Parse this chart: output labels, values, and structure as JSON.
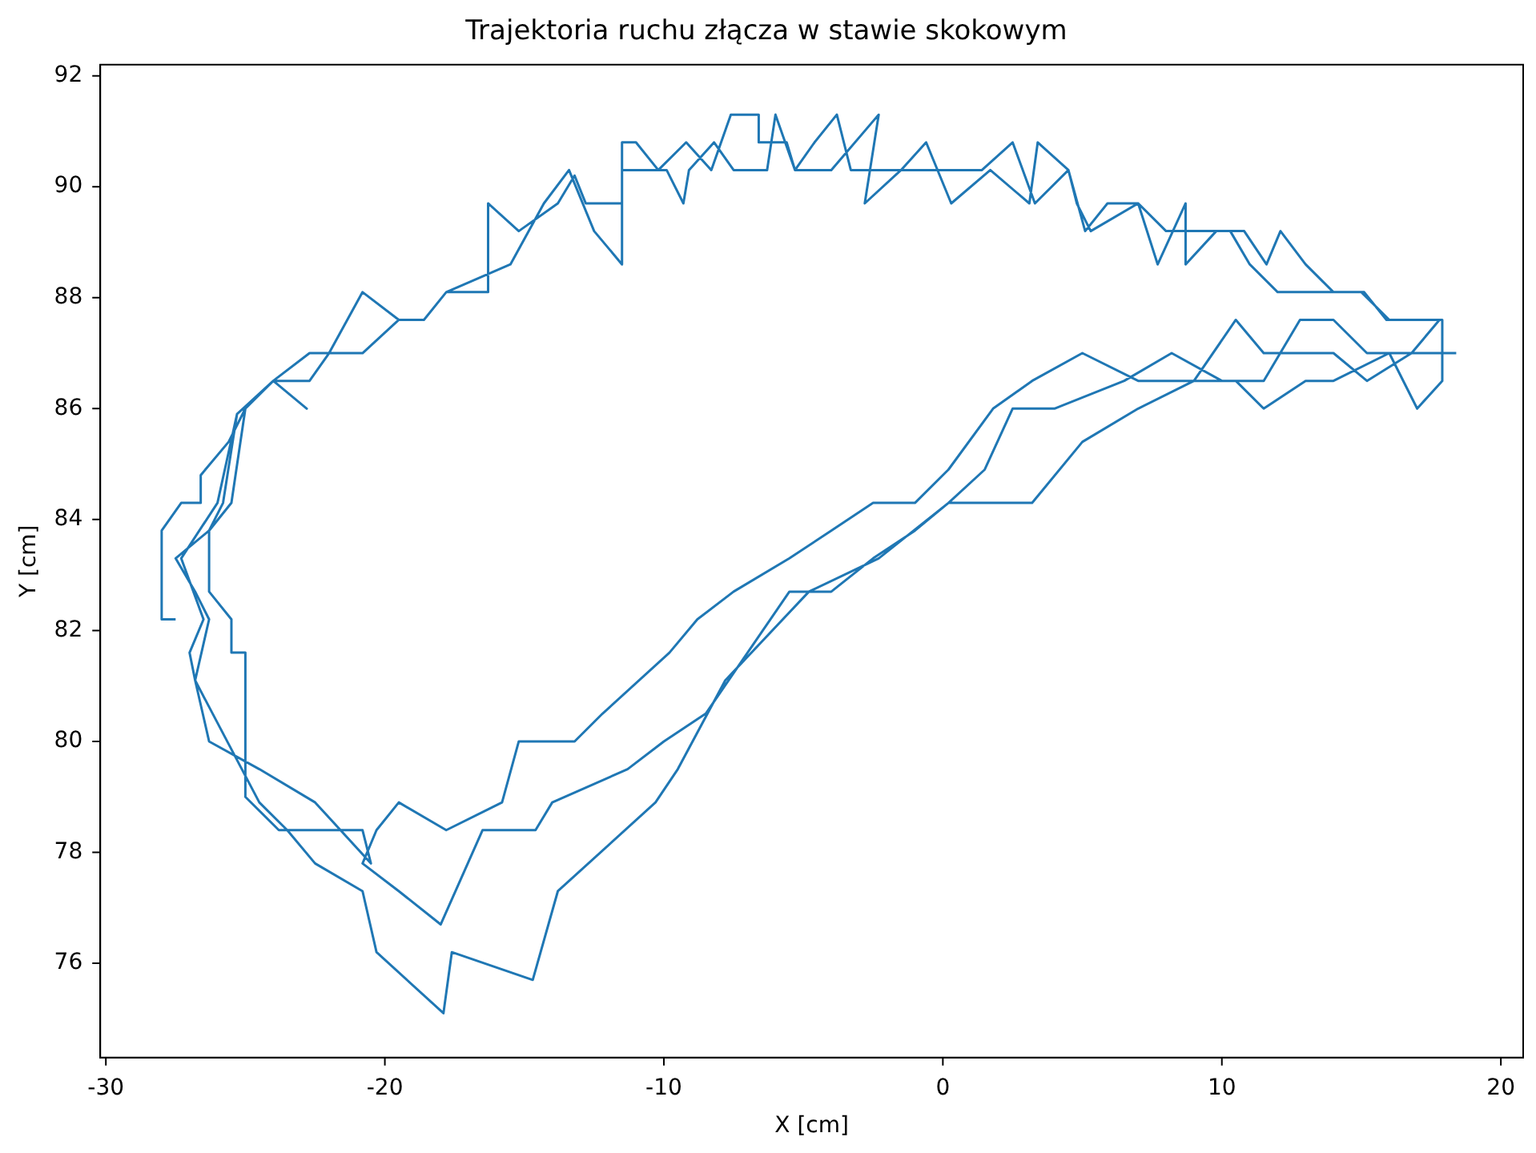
{
  "chart_data": {
    "type": "line",
    "title": "Trajektoria ruchu złącza w stawie skokowym",
    "xlabel": "X [cm]",
    "ylabel": "Y [cm]",
    "xlim": [
      -30.2,
      20.8
    ],
    "ylim": [
      74.3,
      92.2
    ],
    "xticks": [
      -30,
      -20,
      -10,
      0,
      10,
      20
    ],
    "yticks": [
      76,
      78,
      80,
      82,
      84,
      86,
      88,
      90,
      92
    ],
    "grid": false,
    "legend": false,
    "series": [
      {
        "color": "#1f77b4",
        "x": [
          -27.5,
          -28,
          -28,
          -27.3,
          -26.6,
          -26.6,
          -25.6,
          -25,
          -24,
          -22.8,
          -24,
          -25,
          -25.5,
          -26.3,
          -27.5,
          -26.8,
          -26.3,
          -26.8,
          -26.3,
          -24.5,
          -22.5,
          -20.5,
          -20.8,
          -22.5,
          -23.8,
          -25,
          -25,
          -25.5,
          -25.5,
          -26.3,
          -26.3,
          -25.8,
          -25.3,
          -24,
          -22.7,
          -22,
          -20.8,
          -19.5,
          -18.6,
          -17.8,
          -16.3,
          -16.3,
          -15.2,
          -13.8,
          -13.2,
          -12.8,
          -11.5,
          -11.5,
          -11,
          -10.2,
          -9.2,
          -8.3,
          -7.6,
          -6.6,
          -6.6,
          -5.6,
          -5.3,
          -4.6,
          -3.8,
          -3.3,
          -2.3,
          -1.2,
          0.4,
          1.4,
          2.5,
          3.3,
          4.5,
          5.1,
          5.9,
          7,
          8,
          9.3,
          10.3,
          11,
          12,
          13.3,
          15.1,
          15.9,
          17.9,
          17.9,
          17,
          16,
          14,
          13,
          11.5,
          10.5,
          9,
          7,
          5,
          3.2,
          1.8,
          0.2,
          -1,
          -2.5,
          -4,
          -5.5,
          -7,
          -8.5,
          -10,
          -11.3,
          -14,
          -14.6,
          -16.5,
          -18,
          -19.5,
          -20.8,
          -20.3,
          -19.5,
          -17.8,
          -15.8,
          -15.2,
          -13.2,
          -12.2,
          -9.8,
          -8.8,
          -7.5,
          -5.5,
          -4,
          -2.5,
          -1,
          0.2,
          1.8,
          3.2,
          5,
          7,
          9,
          10.5,
          11.5,
          12.8,
          14,
          15.2,
          16.8,
          17.8,
          16,
          15,
          14,
          13,
          12.1,
          11.6,
          10.8,
          9.8,
          8.7,
          8.7,
          7.7,
          7,
          5.3,
          4.8,
          4.5,
          3.4,
          3.1,
          1.7,
          0.3,
          -0.6,
          -1.5,
          -2.8,
          -2.3,
          -4,
          -5.3,
          -6,
          -6.3,
          -7.5,
          -8.2,
          -9.1,
          -9.3,
          -9.9,
          -11.5,
          -11.5,
          -12.5,
          -13.4,
          -14.3,
          -15.5,
          -17.8,
          -18.6,
          -19.5,
          -20.8,
          -22,
          -22.7,
          -24,
          -25.3,
          -26,
          -27.3,
          -26.5,
          -27,
          -26.8,
          -24.5,
          -23.5,
          -22.5,
          -20.8,
          -20.3,
          -17.9,
          -17.6,
          -14.7,
          -13.8,
          -10.3,
          -9.5,
          -7.8,
          -4.8,
          -2.3,
          0.2,
          1.5,
          2.5,
          4,
          6.5,
          8.2,
          10,
          11.5,
          12.8,
          14,
          15.2,
          16.8,
          18.4
        ],
        "values": [
          82.2,
          82.2,
          83.8,
          84.3,
          84.3,
          84.8,
          85.4,
          86,
          86.5,
          86,
          86.5,
          86,
          84.3,
          83.8,
          83.3,
          82.7,
          82.2,
          81.1,
          80,
          79.5,
          78.9,
          77.8,
          78.4,
          78.4,
          78.4,
          79,
          81.6,
          81.6,
          82.2,
          82.7,
          83.8,
          84.3,
          85.9,
          86.5,
          86.5,
          87,
          87,
          87.6,
          87.6,
          88.1,
          88.1,
          89.7,
          89.2,
          89.7,
          90.2,
          89.7,
          89.7,
          90.8,
          90.8,
          90.3,
          90.8,
          90.3,
          91.3,
          91.3,
          90.8,
          90.8,
          90.3,
          90.8,
          91.3,
          90.3,
          90.3,
          90.3,
          90.3,
          90.3,
          90.8,
          89.7,
          90.3,
          89.2,
          89.7,
          89.7,
          89.2,
          89.2,
          89.2,
          88.6,
          88.1,
          88.1,
          88.1,
          87.6,
          87.6,
          86.5,
          86,
          87,
          86.5,
          86.5,
          86,
          86.5,
          86.5,
          86,
          85.4,
          84.3,
          84.3,
          84.3,
          83.8,
          83.3,
          82.7,
          82.7,
          81.6,
          80.5,
          80,
          79.5,
          78.9,
          78.4,
          78.4,
          76.7,
          77.3,
          77.8,
          78.4,
          78.9,
          78.4,
          78.9,
          80,
          80,
          80.5,
          81.6,
          82.2,
          82.7,
          83.3,
          83.8,
          84.3,
          84.3,
          84.9,
          86,
          86.5,
          87,
          86.5,
          86.5,
          87.6,
          87,
          87,
          87,
          86.5,
          87,
          87.6,
          87.6,
          88.1,
          88.1,
          88.6,
          89.2,
          88.6,
          89.2,
          89.2,
          88.6,
          89.7,
          88.6,
          89.7,
          89.2,
          89.7,
          90.3,
          90.8,
          89.7,
          90.3,
          89.7,
          90.8,
          90.3,
          89.7,
          91.3,
          90.3,
          90.3,
          91.3,
          90.3,
          90.3,
          90.8,
          90.3,
          89.7,
          90.3,
          90.3,
          88.6,
          89.2,
          90.3,
          89.7,
          88.6,
          88.1,
          87.6,
          87.6,
          88.1,
          87,
          87,
          86.5,
          85.9,
          84.3,
          83.3,
          82.2,
          81.6,
          81.1,
          78.9,
          78.4,
          77.8,
          77.3,
          76.2,
          75.1,
          76.2,
          75.7,
          77.3,
          78.9,
          79.5,
          81.1,
          82.7,
          83.3,
          84.3,
          84.9,
          86,
          86,
          86.5,
          87,
          86.5,
          86.5,
          87.6,
          87.6,
          87,
          87,
          87
        ]
      }
    ]
  }
}
